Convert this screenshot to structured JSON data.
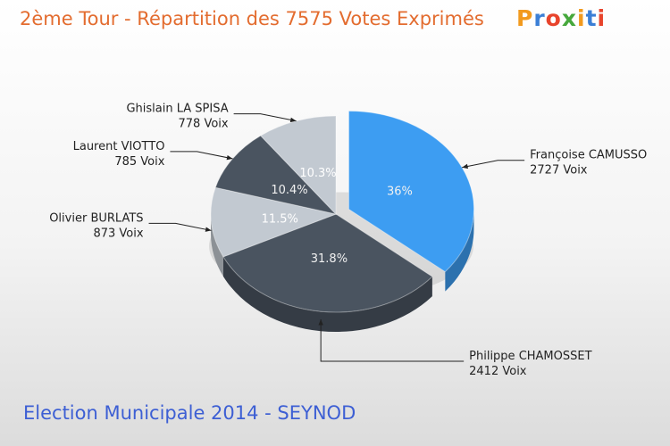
{
  "header": {
    "title": "2ème Tour - Répartition des 7575 Votes Exprimés",
    "logo_text": "Proxiti"
  },
  "footer": {
    "subtitle": "Election Municipale 2014 - SEYNOD"
  },
  "colors": {
    "title": "#e36c2f",
    "subtitle": "#3d5fd4",
    "logo_letters": [
      "#f29a1e",
      "#3b7fd6",
      "#e8442c",
      "#46a83c",
      "#f29a1e",
      "#3b7fd6",
      "#e8442c"
    ]
  },
  "chart_data": {
    "type": "pie",
    "title": "2ème Tour - Répartition des 7575 Votes Exprimés",
    "total": 7575,
    "slices": [
      {
        "name": "Françoise CAMUSSO",
        "votes": 2727,
        "votes_label": "2727 Voix",
        "percent": 36,
        "percent_label": "36%",
        "color": "#3d9df2",
        "exploded": true
      },
      {
        "name": "Philippe CHAMOSSET",
        "votes": 2412,
        "votes_label": "2412 Voix",
        "percent": 31.8,
        "percent_label": "31.8%",
        "color": "#4a5460",
        "exploded": false
      },
      {
        "name": "Olivier BURLATS",
        "votes": 873,
        "votes_label": "873 Voix",
        "percent": 11.5,
        "percent_label": "11.5%",
        "color": "#c2c9d1",
        "exploded": false
      },
      {
        "name": "Laurent VIOTTO",
        "votes": 785,
        "votes_label": "785 Voix",
        "percent": 10.4,
        "percent_label": "10.4%",
        "color": "#4a5460",
        "exploded": false
      },
      {
        "name": "Ghislain LA SPISA",
        "votes": 778,
        "votes_label": "778 Voix",
        "percent": 10.3,
        "percent_label": "10.3%",
        "color": "#c2c9d1",
        "exploded": false
      }
    ]
  }
}
